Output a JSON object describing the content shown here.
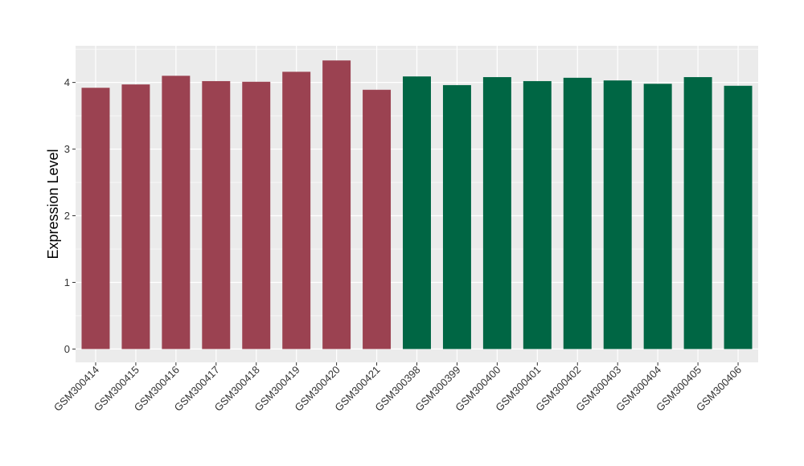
{
  "chart_data": {
    "type": "bar",
    "title": "",
    "xlabel": "",
    "ylabel": "Expression Level",
    "ylim": [
      -0.2,
      4.55
    ],
    "yticks": [
      0,
      1,
      2,
      3,
      4
    ],
    "grid": true,
    "categories": [
      "GSM300414",
      "GSM300415",
      "GSM300416",
      "GSM300417",
      "GSM300418",
      "GSM300419",
      "GSM300420",
      "GSM300421",
      "GSM300398",
      "GSM300399",
      "GSM300400",
      "GSM300401",
      "GSM300402",
      "GSM300403",
      "GSM300404",
      "GSM300405",
      "GSM300406"
    ],
    "values": [
      3.92,
      3.97,
      4.1,
      4.02,
      4.01,
      4.16,
      4.33,
      3.89,
      4.09,
      3.96,
      4.08,
      4.02,
      4.07,
      4.03,
      3.98,
      4.08,
      3.95
    ],
    "colors": [
      "#9B4251",
      "#9B4251",
      "#9B4251",
      "#9B4251",
      "#9B4251",
      "#9B4251",
      "#9B4251",
      "#9B4251",
      "#006644",
      "#006644",
      "#006644",
      "#006644",
      "#006644",
      "#006644",
      "#006644",
      "#006644",
      "#006644"
    ],
    "panel_background": "#EBEBEB",
    "gridline_color": "#FFFFFF"
  }
}
